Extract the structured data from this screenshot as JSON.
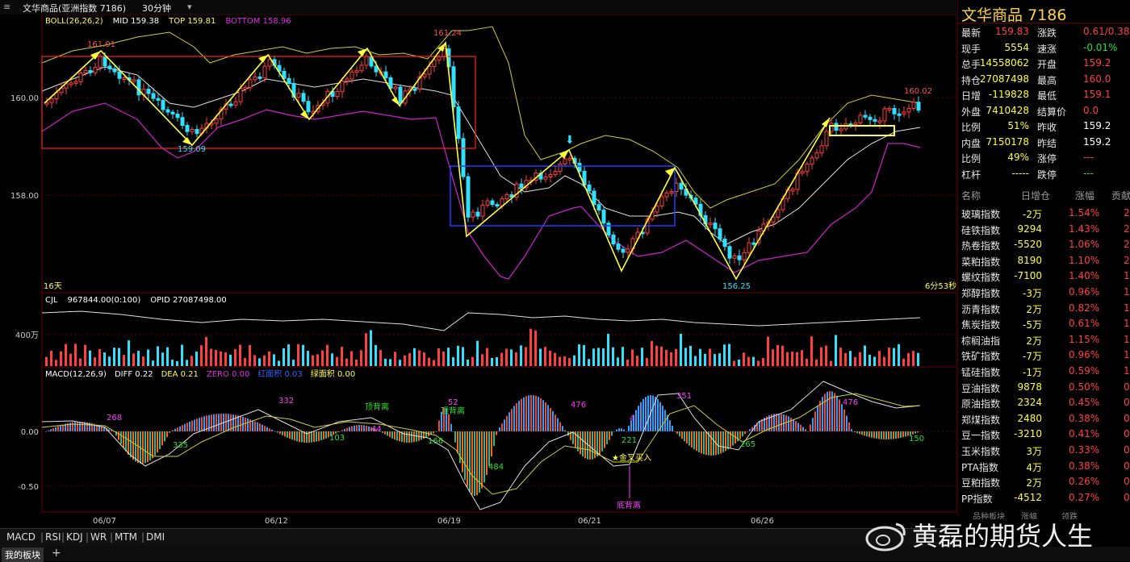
{
  "window": {
    "title": "文华商品(亚洲指数 7186)",
    "period": "30分钟"
  },
  "colors": {
    "up": "#ff4040",
    "down": "#30e0ff",
    "boll_mid": "#ffffff",
    "boll_top": "#ffff40",
    "boll_bottom": "#e030e0"
  },
  "main_chart": {
    "legend_name": "BOLL(26,26,2)",
    "mid_label": "MID 159.38",
    "top_label": "TOP 159.81",
    "bottom_label": "BOTTOM 158.96",
    "y_ticks": [
      "160.00",
      "158.00"
    ],
    "days_label": "16天",
    "countdown": "6分53秒",
    "annotations": [
      "161.01",
      "159.09",
      "161.24",
      "156.25",
      "160.02"
    ]
  },
  "volume_chart": {
    "legend_name": "CJL",
    "vol_label": "967844.00(0:100)",
    "opid_label": "OPID 27087498.00",
    "y_tick": "400万"
  },
  "macd_chart": {
    "legend_name": "MACD(12,26,9)",
    "diff_label": "DIFF 0.22",
    "dea_label": "DEA 0.21",
    "zero_label": "ZERO 0.00",
    "red_area_label": "红面积 0.03",
    "green_area_label": "绿面积 0.00",
    "y_ticks": [
      "0.00",
      "-0.50"
    ],
    "annotations": {
      "n268": "268",
      "n332": "332",
      "n335": "335",
      "n103": "103",
      "n166": "166",
      "n52": "52",
      "n484": "484",
      "n476a": "476",
      "n4": "4",
      "n221": "221",
      "n351": "351",
      "n265": "265",
      "n476b": "476",
      "n150": "150",
      "n44": "44",
      "top_div1": "顶背离",
      "top_div2": "顶背离",
      "bottom_div": "底背离",
      "golden_cross": "★金叉买入"
    },
    "x_ticks": [
      "06/07",
      "06/12",
      "06/19",
      "06/21",
      "06/26"
    ]
  },
  "quote": {
    "title": "文华商品",
    "code": "7186",
    "left_rows": [
      {
        "label": "最新",
        "value": "159.83",
        "color": "red"
      },
      {
        "label": "现手",
        "value": "5554",
        "color": "yellow"
      },
      {
        "label": "总手",
        "value": "14558062",
        "color": "yellow"
      },
      {
        "label": "持仓",
        "value": "27087498",
        "color": "yellow"
      },
      {
        "label": "日增",
        "value": "-119828",
        "color": "yellow"
      },
      {
        "label": "外盘",
        "value": "7410428",
        "color": "yellow"
      },
      {
        "label": "比例",
        "value": "51%",
        "color": "yellow"
      },
      {
        "label": "内盘",
        "value": "7150178",
        "color": "yellow"
      },
      {
        "label": "比例",
        "value": "49%",
        "color": "yellow"
      },
      {
        "label": "杠杆",
        "value": "-----",
        "color": "yellow"
      }
    ],
    "right_rows": [
      {
        "label": "涨跌",
        "value": "0.61/0.38%",
        "color": "red"
      },
      {
        "label": "速涨",
        "value": "-0.01%",
        "color": "green"
      },
      {
        "label": "开盘",
        "value": "159.2",
        "color": "red"
      },
      {
        "label": "最高",
        "value": "160.0",
        "color": "red"
      },
      {
        "label": "最低",
        "value": "159.1",
        "color": "red"
      },
      {
        "label": "结算价",
        "value": "0.0",
        "color": "red"
      },
      {
        "label": "昨收",
        "value": "159.2",
        "color": "white"
      },
      {
        "label": "昨结",
        "value": "159.2",
        "color": "white"
      },
      {
        "label": "涨停",
        "value": "---",
        "color": "red"
      },
      {
        "label": "跌停",
        "value": "---",
        "color": "green"
      }
    ]
  },
  "sector_table": {
    "headers": [
      "名称",
      "日增仓",
      "涨幅",
      "贡献"
    ],
    "rows": [
      {
        "name": "玻璃指数",
        "oi": "-2万",
        "chg": "1.54%",
        "contrib": "2."
      },
      {
        "name": "硅铁指数",
        "oi": "9294",
        "chg": "1.43%",
        "contrib": "2."
      },
      {
        "name": "热卷指数",
        "oi": "-5520",
        "chg": "1.06%",
        "contrib": "2."
      },
      {
        "name": "菜粕指数",
        "oi": "8190",
        "chg": "1.10%",
        "contrib": "2."
      },
      {
        "name": "螺纹指数",
        "oi": "-7100",
        "chg": "1.40%",
        "contrib": "1."
      },
      {
        "name": "郑醇指数",
        "oi": "-3万",
        "chg": "0.96%",
        "contrib": "1."
      },
      {
        "name": "沥青指数",
        "oi": "2万",
        "chg": "0.82%",
        "contrib": "1."
      },
      {
        "name": "焦炭指数",
        "oi": "-5万",
        "chg": "0.61%",
        "contrib": "1."
      },
      {
        "name": "棕榈油指",
        "oi": "2万",
        "chg": "1.15%",
        "contrib": "1."
      },
      {
        "name": "铁矿指数",
        "oi": "-7万",
        "chg": "0.96%",
        "contrib": "1."
      },
      {
        "name": "锰硅指数",
        "oi": "-1万",
        "chg": "0.59%",
        "contrib": "1."
      },
      {
        "name": "豆油指数",
        "oi": "9878",
        "chg": "0.50%",
        "contrib": "0."
      },
      {
        "name": "原油指数",
        "oi": "2324",
        "chg": "0.45%",
        "contrib": "0."
      },
      {
        "name": "郑煤指数",
        "oi": "2480",
        "chg": "0.38%",
        "contrib": "0."
      },
      {
        "name": "豆一指数",
        "oi": "-3210",
        "chg": "0.41%",
        "contrib": "0."
      },
      {
        "name": "玉米指数",
        "oi": "3万",
        "chg": "0.33%",
        "contrib": "0."
      },
      {
        "name": "PTA指数",
        "oi": "4万",
        "chg": "0.38%",
        "contrib": "0."
      },
      {
        "name": "豆粕指数",
        "oi": "2万",
        "chg": "0.26%",
        "contrib": "0."
      },
      {
        "name": "PP指数",
        "oi": "-4512",
        "chg": "0.27%",
        "contrib": "0."
      }
    ],
    "sub_tabs": [
      "品种板块",
      "涨幅",
      "领跌"
    ]
  },
  "indicator_tabs": [
    "MACD",
    "RSI",
    "KDJ",
    "WR",
    "MTM",
    "DMI"
  ],
  "status": {
    "my_sector": "我的板块",
    "add": "+"
  },
  "watermark": "黄磊的期货人生"
}
